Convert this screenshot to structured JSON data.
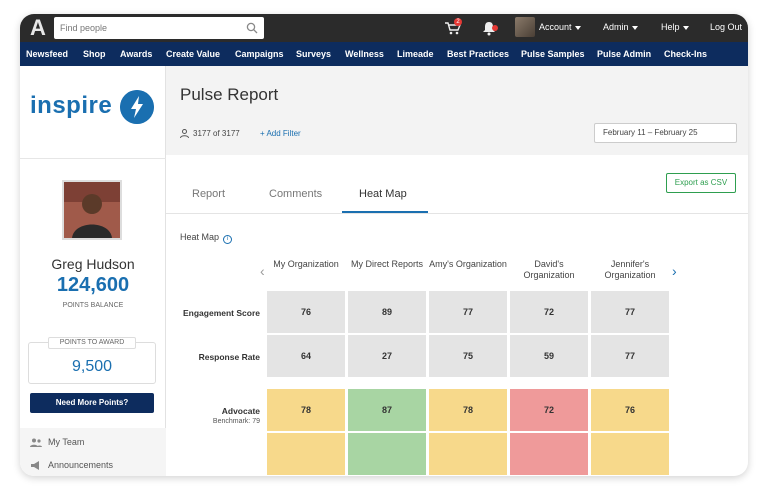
{
  "topbar": {
    "search_placeholder": "Find people",
    "notification_count": "2",
    "account_label": "Account",
    "admin_label": "Admin",
    "help_label": "Help",
    "logout_label": "Log Out"
  },
  "nav": {
    "items": [
      "Newsfeed",
      "Shop",
      "Awards",
      "Create Value",
      "Campaigns",
      "Surveys",
      "Wellness",
      "Limeade",
      "Best Practices",
      "Pulse Samples",
      "Pulse Admin",
      "Check-Ins"
    ]
  },
  "sidebar": {
    "brand": "inspire",
    "user_name": "Greg Hudson",
    "points_balance": "124,600",
    "points_balance_label": "POINTS BALANCE",
    "points_to_award_label": "POINTS TO AWARD",
    "points_to_award": "9,500",
    "more_points_button": "Need More Points?",
    "links": [
      "My Team",
      "Announcements"
    ]
  },
  "main": {
    "title": "Pulse Report",
    "count": "3177 of 3177",
    "add_filter": "+ Add Filter",
    "date_range": "February 11 – February 25",
    "export_button": "Export as CSV",
    "tabs": [
      "Report",
      "Comments",
      "Heat Map"
    ],
    "active_tab": "Heat Map",
    "heatmap_title": "Heat Map"
  },
  "heatmap": {
    "columns": [
      "My Organization",
      "My Direct Reports",
      "Amy's Organization",
      "David's Organization",
      "Jennifer's Organization"
    ],
    "rows": [
      {
        "label": "Engagement Score",
        "sub": "",
        "values": [
          "76",
          "89",
          "77",
          "72",
          "77"
        ],
        "colors": [
          "grey",
          "grey",
          "grey",
          "grey",
          "grey"
        ]
      },
      {
        "label": "Response Rate",
        "sub": "",
        "values": [
          "64",
          "27",
          "75",
          "59",
          "77"
        ],
        "colors": [
          "grey",
          "grey",
          "grey",
          "grey",
          "grey"
        ]
      },
      {
        "label": "Advocate",
        "sub": "Benchmark: 79",
        "values": [
          "78",
          "87",
          "78",
          "72",
          "76"
        ],
        "colors": [
          "yellow",
          "green",
          "yellow",
          "red",
          "yellow"
        ]
      }
    ],
    "partial_row_colors": [
      "yellow",
      "green",
      "yellow",
      "red",
      "yellow"
    ]
  },
  "colors": {
    "nav_bg": "#0d2c5e",
    "accent_blue": "#1a6fb0",
    "export_green": "#2e9e4f",
    "cell_grey": "#e4e4e4",
    "cell_yellow": "#f7d98b",
    "cell_green": "#a8d5a3",
    "cell_red": "#ef9a9a"
  }
}
